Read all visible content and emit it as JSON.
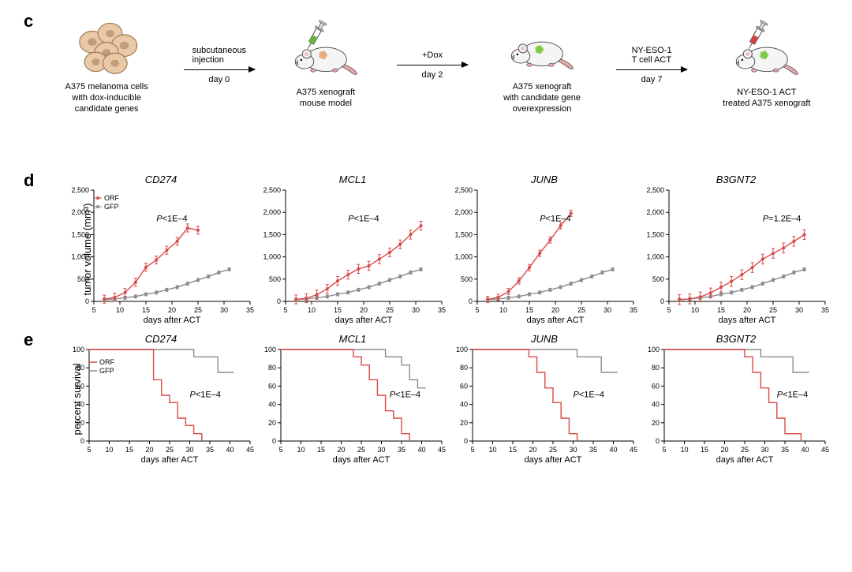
{
  "colors": {
    "orf": "#d94a4a",
    "gfp": "#8c8c8c",
    "axis": "#000000",
    "bg": "#ffffff",
    "mouse_body": "#f5f5f5",
    "mouse_outline": "#404040",
    "mouse_tail": "#e8a8a8",
    "cell_fill": "#e8c9a8",
    "cell_outline": "#a07850",
    "tumor_orange": "#e8a878",
    "tumor_green": "#7ac943",
    "syringe_green": "#6bb33f",
    "syringe_red": "#c44",
    "syringe_outline": "#2a5a2a"
  },
  "panel_c": {
    "label": "c",
    "items": [
      {
        "caption_lines": [
          "A375 melanoma cells",
          "with dox-inducible",
          "candidate genes"
        ],
        "icon": "cells"
      },
      {
        "caption_lines": [
          "A375 xenograft",
          "mouse model"
        ],
        "icon": "mouse_syringe_green_orange"
      },
      {
        "caption_lines": [
          "A375 xenograft",
          "with candidate gene",
          "overexpression"
        ],
        "icon": "mouse_green"
      },
      {
        "caption_lines": [
          "NY-ESO-1 ACT",
          "treated A375 xenograft"
        ],
        "icon": "mouse_syringe_red_green"
      }
    ],
    "arrows": [
      {
        "top": "subcutaneous\ninjection",
        "bottom": "day 0"
      },
      {
        "top": "+Dox",
        "bottom": "day 2"
      },
      {
        "top": "NY-ESO-1\nT cell ACT",
        "bottom": "day 7"
      }
    ]
  },
  "panel_d": {
    "label": "d",
    "y_label": "tumor volume (mm³)",
    "x_label": "days after ACT",
    "legend": {
      "orf": "ORF",
      "gfp": "GFP"
    },
    "xlim": [
      5,
      35
    ],
    "xtick_step": 5,
    "ylim": [
      0,
      2500
    ],
    "ytick_step": 500,
    "charts": [
      {
        "title": "CD274",
        "pval": "P<1E–4",
        "pval_pos": [
          17,
          1800
        ],
        "gfp": [
          [
            7,
            40
          ],
          [
            9,
            55
          ],
          [
            11,
            80
          ],
          [
            13,
            110
          ],
          [
            15,
            160
          ],
          [
            17,
            200
          ],
          [
            19,
            260
          ],
          [
            21,
            320
          ],
          [
            23,
            400
          ],
          [
            25,
            480
          ],
          [
            27,
            560
          ],
          [
            29,
            650
          ],
          [
            31,
            720
          ]
        ],
        "orf": [
          [
            7,
            50
          ],
          [
            9,
            90
          ],
          [
            11,
            200
          ],
          [
            13,
            430
          ],
          [
            15,
            770
          ],
          [
            17,
            930
          ],
          [
            19,
            1150
          ],
          [
            21,
            1350
          ],
          [
            23,
            1650
          ],
          [
            25,
            1600
          ]
        ],
        "gfp_err": 35,
        "orf_err": 90
      },
      {
        "title": "MCL1",
        "pval": "P<1E–4",
        "pval_pos": [
          17,
          1800
        ],
        "gfp": [
          [
            7,
            40
          ],
          [
            9,
            55
          ],
          [
            11,
            80
          ],
          [
            13,
            110
          ],
          [
            15,
            160
          ],
          [
            17,
            200
          ],
          [
            19,
            260
          ],
          [
            21,
            320
          ],
          [
            23,
            400
          ],
          [
            25,
            480
          ],
          [
            27,
            560
          ],
          [
            29,
            650
          ],
          [
            31,
            720
          ]
        ],
        "orf": [
          [
            7,
            45
          ],
          [
            9,
            70
          ],
          [
            11,
            150
          ],
          [
            13,
            280
          ],
          [
            15,
            460
          ],
          [
            17,
            600
          ],
          [
            19,
            730
          ],
          [
            21,
            800
          ],
          [
            23,
            950
          ],
          [
            25,
            1100
          ],
          [
            27,
            1280
          ],
          [
            29,
            1500
          ],
          [
            31,
            1700
          ]
        ],
        "gfp_err": 35,
        "orf_err": 100
      },
      {
        "title": "JUNB",
        "pval": "P<1E–4",
        "pval_pos": [
          17,
          1800
        ],
        "gfp": [
          [
            7,
            40
          ],
          [
            9,
            55
          ],
          [
            11,
            80
          ],
          [
            13,
            110
          ],
          [
            15,
            160
          ],
          [
            17,
            200
          ],
          [
            19,
            260
          ],
          [
            21,
            320
          ],
          [
            23,
            400
          ],
          [
            25,
            480
          ],
          [
            27,
            560
          ],
          [
            29,
            650
          ],
          [
            31,
            720
          ]
        ],
        "orf": [
          [
            7,
            45
          ],
          [
            9,
            90
          ],
          [
            11,
            220
          ],
          [
            13,
            460
          ],
          [
            15,
            760
          ],
          [
            17,
            1080
          ],
          [
            19,
            1380
          ],
          [
            21,
            1700
          ],
          [
            23,
            1980
          ]
        ],
        "gfp_err": 35,
        "orf_err": 70
      },
      {
        "title": "B3GNT2",
        "pval": "P=1.2E–4",
        "pval_pos": [
          23,
          1800
        ],
        "gfp": [
          [
            7,
            40
          ],
          [
            9,
            55
          ],
          [
            11,
            80
          ],
          [
            13,
            110
          ],
          [
            15,
            160
          ],
          [
            17,
            200
          ],
          [
            19,
            260
          ],
          [
            21,
            320
          ],
          [
            23,
            400
          ],
          [
            25,
            480
          ],
          [
            27,
            560
          ],
          [
            29,
            650
          ],
          [
            31,
            720
          ]
        ],
        "orf": [
          [
            7,
            40
          ],
          [
            9,
            55
          ],
          [
            11,
            100
          ],
          [
            13,
            190
          ],
          [
            15,
            320
          ],
          [
            17,
            450
          ],
          [
            19,
            600
          ],
          [
            21,
            760
          ],
          [
            23,
            950
          ],
          [
            25,
            1080
          ],
          [
            27,
            1200
          ],
          [
            29,
            1350
          ],
          [
            31,
            1500
          ]
        ],
        "gfp_err": 35,
        "orf_err": 110
      }
    ]
  },
  "panel_e": {
    "label": "e",
    "y_label": "percent survival",
    "x_label": "days after ACT",
    "legend": {
      "orf": "ORF",
      "gfp": "GFP"
    },
    "xlim": [
      5,
      45
    ],
    "xtick_step": 5,
    "ylim": [
      0,
      100
    ],
    "ytick_step": 20,
    "charts": [
      {
        "title": "CD274",
        "pval": "P<1E–4",
        "pval_pos": [
          30,
          48
        ],
        "gfp": [
          [
            5,
            100
          ],
          [
            31,
            100
          ],
          [
            31,
            92
          ],
          [
            37,
            92
          ],
          [
            37,
            75
          ],
          [
            41,
            75
          ]
        ],
        "orf": [
          [
            5,
            100
          ],
          [
            21,
            100
          ],
          [
            21,
            67
          ],
          [
            23,
            67
          ],
          [
            23,
            50
          ],
          [
            25,
            50
          ],
          [
            25,
            42
          ],
          [
            27,
            42
          ],
          [
            27,
            25
          ],
          [
            29,
            25
          ],
          [
            29,
            17
          ],
          [
            31,
            17
          ],
          [
            31,
            8
          ],
          [
            33,
            8
          ],
          [
            33,
            0
          ]
        ]
      },
      {
        "title": "MCL1",
        "pval": "P<1E–4",
        "pval_pos": [
          32,
          48
        ],
        "gfp": [
          [
            5,
            100
          ],
          [
            31,
            100
          ],
          [
            31,
            92
          ],
          [
            35,
            92
          ],
          [
            35,
            83
          ],
          [
            37,
            83
          ],
          [
            37,
            67
          ],
          [
            39,
            67
          ],
          [
            39,
            58
          ],
          [
            41,
            58
          ]
        ],
        "orf": [
          [
            5,
            100
          ],
          [
            23,
            100
          ],
          [
            23,
            92
          ],
          [
            25,
            92
          ],
          [
            25,
            83
          ],
          [
            27,
            83
          ],
          [
            27,
            67
          ],
          [
            29,
            67
          ],
          [
            29,
            50
          ],
          [
            31,
            50
          ],
          [
            31,
            33
          ],
          [
            33,
            33
          ],
          [
            33,
            25
          ],
          [
            35,
            25
          ],
          [
            35,
            8
          ],
          [
            37,
            8
          ],
          [
            37,
            0
          ]
        ]
      },
      {
        "title": "JUNB",
        "pval": "P<1E–4",
        "pval_pos": [
          30,
          48
        ],
        "gfp": [
          [
            5,
            100
          ],
          [
            31,
            100
          ],
          [
            31,
            92
          ],
          [
            37,
            92
          ],
          [
            37,
            75
          ],
          [
            41,
            75
          ]
        ],
        "orf": [
          [
            5,
            100
          ],
          [
            19,
            100
          ],
          [
            19,
            92
          ],
          [
            21,
            92
          ],
          [
            21,
            75
          ],
          [
            23,
            75
          ],
          [
            23,
            58
          ],
          [
            25,
            58
          ],
          [
            25,
            42
          ],
          [
            27,
            42
          ],
          [
            27,
            25
          ],
          [
            29,
            25
          ],
          [
            29,
            8
          ],
          [
            31,
            8
          ],
          [
            31,
            0
          ]
        ]
      },
      {
        "title": "B3GNT2",
        "pval": "P<1E–4",
        "pval_pos": [
          33,
          48
        ],
        "gfp": [
          [
            5,
            100
          ],
          [
            29,
            100
          ],
          [
            29,
            92
          ],
          [
            37,
            92
          ],
          [
            37,
            75
          ],
          [
            41,
            75
          ]
        ],
        "orf": [
          [
            5,
            100
          ],
          [
            25,
            100
          ],
          [
            25,
            92
          ],
          [
            27,
            92
          ],
          [
            27,
            75
          ],
          [
            29,
            75
          ],
          [
            29,
            58
          ],
          [
            31,
            58
          ],
          [
            31,
            42
          ],
          [
            33,
            42
          ],
          [
            33,
            25
          ],
          [
            35,
            25
          ],
          [
            35,
            8
          ],
          [
            39,
            8
          ],
          [
            39,
            0
          ]
        ]
      }
    ]
  }
}
